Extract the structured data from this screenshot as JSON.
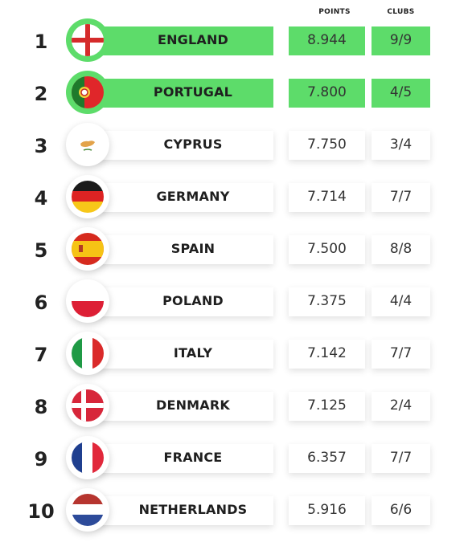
{
  "headers": {
    "points": "POINTS",
    "clubs": "CLUBS"
  },
  "colors": {
    "highlight": "#5ddc6a"
  },
  "rows": [
    {
      "rank": "1",
      "country": "ENGLAND",
      "points": "8.944",
      "clubs": "9/9",
      "flag": "england-flag-icon",
      "highlight": true
    },
    {
      "rank": "2",
      "country": "PORTUGAL",
      "points": "7.800",
      "clubs": "4/5",
      "flag": "portugal-flag-icon",
      "highlight": true
    },
    {
      "rank": "3",
      "country": "CYPRUS",
      "points": "7.750",
      "clubs": "3/4",
      "flag": "cyprus-flag-icon",
      "highlight": false
    },
    {
      "rank": "4",
      "country": "GERMANY",
      "points": "7.714",
      "clubs": "7/7",
      "flag": "germany-flag-icon",
      "highlight": false
    },
    {
      "rank": "5",
      "country": "SPAIN",
      "points": "7.500",
      "clubs": "8/8",
      "flag": "spain-flag-icon",
      "highlight": false
    },
    {
      "rank": "6",
      "country": "POLAND",
      "points": "7.375",
      "clubs": "4/4",
      "flag": "poland-flag-icon",
      "highlight": false
    },
    {
      "rank": "7",
      "country": "ITALY",
      "points": "7.142",
      "clubs": "7/7",
      "flag": "italy-flag-icon",
      "highlight": false
    },
    {
      "rank": "8",
      "country": "DENMARK",
      "points": "7.125",
      "clubs": "2/4",
      "flag": "denmark-flag-icon",
      "highlight": false
    },
    {
      "rank": "9",
      "country": "FRANCE",
      "points": "6.357",
      "clubs": "7/7",
      "flag": "france-flag-icon",
      "highlight": false
    },
    {
      "rank": "10",
      "country": "NETHERLANDS",
      "points": "5.916",
      "clubs": "6/6",
      "flag": "netherlands-flag-icon",
      "highlight": false
    }
  ]
}
